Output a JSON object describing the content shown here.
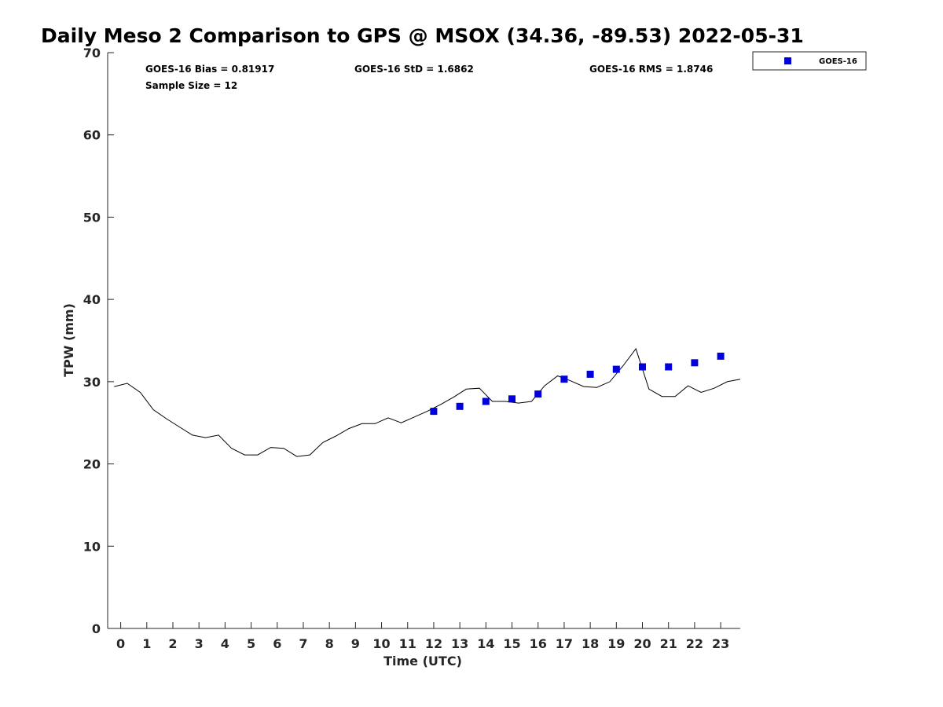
{
  "chart_data": {
    "type": "line+scatter",
    "title": "Daily Meso 2 Comparison to GPS @ MSOX (34.36, -89.53) 2022-05-31",
    "xlabel": "Time (UTC)",
    "ylabel": "TPW (mm)",
    "xlim": [
      -0.5,
      23.75
    ],
    "ylim": [
      0,
      70
    ],
    "x_ticks": [
      0,
      1,
      2,
      3,
      4,
      5,
      6,
      7,
      8,
      9,
      10,
      11,
      12,
      13,
      14,
      15,
      16,
      17,
      18,
      19,
      20,
      21,
      22,
      23
    ],
    "y_ticks": [
      0,
      10,
      20,
      30,
      40,
      50,
      60,
      70
    ],
    "grid": false,
    "legend_position": "top-right outside",
    "stats": {
      "bias": "GOES-16 Bias = 0.81917",
      "std": "GOES-16 StD = 1.6862",
      "rms": "GOES-16 RMS = 1.8746",
      "sample_size": "Sample Size = 12"
    },
    "series": [
      {
        "kind": "line",
        "color": "#000000",
        "x": [
          -0.25,
          0.25,
          0.75,
          1.25,
          1.75,
          2.25,
          2.75,
          3.25,
          3.75,
          4.25,
          4.75,
          5.25,
          5.75,
          6.25,
          6.75,
          7.25,
          7.75,
          8.25,
          8.75,
          9.25,
          9.75,
          10.25,
          10.75,
          11.25,
          11.75,
          12.25,
          12.75,
          13.25,
          13.75,
          14.25,
          14.75,
          15.25,
          15.75,
          16.25,
          16.75,
          17.25,
          17.75,
          18.25,
          18.75,
          19.25,
          19.75,
          20.25,
          20.75,
          21.25,
          21.75,
          22.25,
          22.75,
          23.25,
          23.75
        ],
        "values": [
          29.4,
          29.8,
          28.7,
          26.6,
          25.5,
          24.5,
          23.5,
          23.2,
          23.5,
          21.9,
          21.1,
          21.1,
          22.0,
          21.9,
          20.9,
          21.1,
          22.6,
          23.4,
          24.3,
          24.9,
          24.9,
          25.6,
          25.0,
          25.7,
          26.4,
          27.2,
          28.1,
          29.1,
          29.2,
          27.6,
          27.6,
          27.4,
          27.6,
          29.5,
          30.7,
          30.1,
          29.4,
          29.3,
          30.0,
          31.9,
          34.0,
          29.1,
          28.2,
          28.2,
          29.5,
          28.7,
          29.2,
          30.0,
          30.3
        ]
      },
      {
        "kind": "scatter",
        "name": "GOES-16",
        "color": "#0000dd",
        "x": [
          12,
          13,
          14,
          15,
          16,
          17,
          18,
          19,
          20,
          21,
          22,
          23
        ],
        "values": [
          26.4,
          27.0,
          27.6,
          27.9,
          28.5,
          30.3,
          30.9,
          31.5,
          31.8,
          31.8,
          32.3,
          33.1
        ]
      }
    ]
  }
}
